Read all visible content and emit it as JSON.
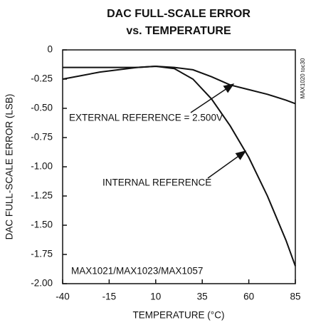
{
  "chart_data": {
    "type": "line",
    "title": [
      "DAC FULL-SCALE ERROR",
      "vs. TEMPERATURE"
    ],
    "xlabel": "TEMPERATURE (°C)",
    "ylabel": "DAC FULL-SCALE ERROR (LSB)",
    "x": [
      -40,
      -30,
      -20,
      -10,
      0,
      10,
      20,
      30,
      40,
      50,
      60,
      70,
      80,
      85
    ],
    "series": [
      {
        "name": "EXTERNAL REFERENCE = 2.500V",
        "color": "#111111",
        "values": [
          -0.25,
          -0.22,
          -0.19,
          -0.17,
          -0.15,
          -0.14,
          -0.15,
          -0.17,
          -0.23,
          -0.3,
          -0.34,
          -0.38,
          -0.43,
          -0.46
        ]
      },
      {
        "name": "INTERNAL REFERENCE",
        "color": "#111111",
        "values": [
          -0.15,
          -0.15,
          -0.15,
          -0.15,
          -0.15,
          -0.14,
          -0.16,
          -0.25,
          -0.42,
          -0.65,
          -0.92,
          -1.25,
          -1.63,
          -1.85
        ]
      }
    ],
    "xlim": [
      -40,
      85
    ],
    "xticks": [
      -40,
      -15,
      10,
      35,
      60,
      85
    ],
    "ylim": [
      -2,
      0
    ],
    "yticks": [
      0,
      -0.25,
      {
        "value": -0.5,
        "label": "-0.50"
      },
      -0.75,
      {
        "value": -1,
        "label": "-1.00"
      },
      -1.25,
      {
        "value": -1.5,
        "label": "-1.50"
      },
      -1.75,
      {
        "value": -2,
        "label": "-2.00"
      }
    ],
    "annotations": [
      "MAX1021/MAX1023/MAX1057",
      "MAX1020 toc30"
    ]
  }
}
